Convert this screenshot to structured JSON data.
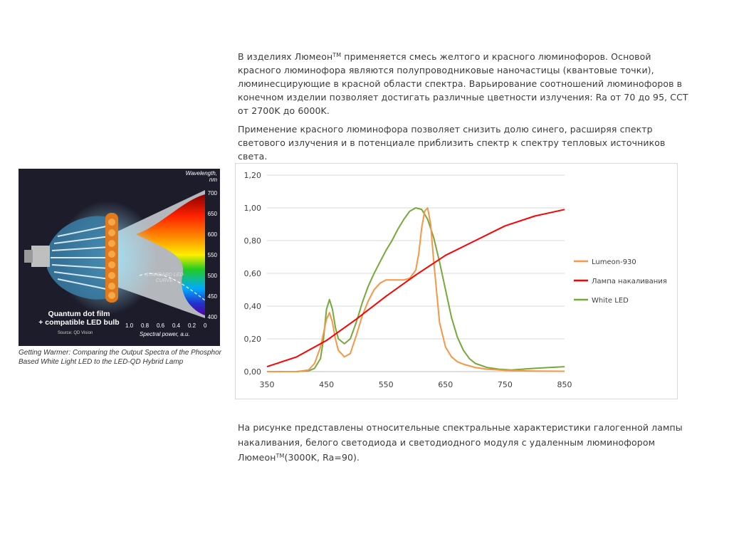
{
  "text": {
    "p1_part1": "В изделиях Люмеон",
    "tm": "TM",
    "p1_part2": " применяется смесь желтого и красного люминофоров. Основой красного люминофора являются полупроводниковые наночастицы (квантовые точки), люминесцирующие в красной области спектра. Варьирование соотношений люминофоров в конечном изделии позволяет достигать различные цветности излучения: Ra от 70 до 95, CCT от 2700K до 6000K.",
    "p2": "Применение красного люминофора позволяет снизить долю синего, расширяя спектр светового излучения и в потенциале приблизить спектр к спектру тепловых источников света.",
    "p3_part1": "На рисунке представлены относительные спектральные характеристики галогенной лампы накаливания, белого светодиода и светодиодного модуля с удаленным люминофором Люмеон",
    "p3_part2": "(3000K, Ra=90)."
  },
  "photo": {
    "wavelength_label": "Wavelength,",
    "wavelength_unit": "nm",
    "wl_ticks": [
      "700",
      "650",
      "600",
      "550",
      "500",
      "450",
      "400"
    ],
    "power_ticks": [
      "1.0",
      "0.8",
      "0.6",
      "0.4",
      "0.2",
      "0"
    ],
    "power_label": "Spectral power, a.u.",
    "curve_label_1": "STANDARD LED",
    "curve_label_2": "CURVE",
    "bulb_line1": "Quantum dot film",
    "bulb_line2": "+ compatible LED bulb",
    "source": "Source: QD Vision",
    "caption": "Getting Warmer: Comparing the Output Spectra of the Phosphor Based White Light LED to the LED-QD Hybrid Lamp"
  },
  "chart_data": {
    "type": "line",
    "xlim": [
      350,
      850
    ],
    "ylim": [
      0,
      1.2
    ],
    "x_ticks": [
      "350",
      "450",
      "550",
      "650",
      "750",
      "850"
    ],
    "y_ticks": [
      "0,00",
      "0,20",
      "0,40",
      "0,60",
      "0,80",
      "1,00",
      "1,20"
    ],
    "grid": true,
    "legend_position": "right",
    "series": [
      {
        "name": "Lumeon-930",
        "color": "#f79646",
        "x": [
          350,
          400,
          420,
          430,
          440,
          450,
          455,
          460,
          465,
          470,
          480,
          490,
          500,
          510,
          520,
          530,
          540,
          550,
          560,
          570,
          580,
          590,
          600,
          605,
          610,
          615,
          620,
          625,
          630,
          640,
          650,
          660,
          670,
          680,
          690,
          700,
          720,
          750,
          800,
          850
        ],
        "y": [
          0,
          0,
          0.01,
          0.05,
          0.15,
          0.32,
          0.36,
          0.3,
          0.2,
          0.13,
          0.09,
          0.11,
          0.22,
          0.34,
          0.43,
          0.5,
          0.54,
          0.56,
          0.56,
          0.56,
          0.56,
          0.57,
          0.62,
          0.72,
          0.88,
          0.98,
          1.0,
          0.9,
          0.68,
          0.3,
          0.15,
          0.09,
          0.06,
          0.045,
          0.035,
          0.025,
          0.015,
          0.008,
          0.003,
          0.002
        ]
      },
      {
        "name": "Лампа накаливания",
        "color": "#ff0000",
        "x": [
          350,
          400,
          450,
          500,
          550,
          600,
          650,
          700,
          750,
          800,
          850
        ],
        "y": [
          0.03,
          0.09,
          0.19,
          0.32,
          0.46,
          0.59,
          0.71,
          0.8,
          0.89,
          0.95,
          0.99
        ]
      },
      {
        "name": "White LED",
        "color": "#77a83a",
        "x": [
          350,
          400,
          420,
          430,
          440,
          445,
          450,
          455,
          460,
          465,
          470,
          480,
          490,
          500,
          510,
          520,
          530,
          540,
          550,
          560,
          570,
          580,
          590,
          600,
          610,
          620,
          630,
          640,
          650,
          660,
          670,
          680,
          690,
          700,
          720,
          740,
          760,
          800,
          850
        ],
        "y": [
          0,
          0,
          0.005,
          0.02,
          0.08,
          0.2,
          0.38,
          0.44,
          0.38,
          0.27,
          0.2,
          0.17,
          0.2,
          0.3,
          0.42,
          0.52,
          0.6,
          0.67,
          0.74,
          0.8,
          0.87,
          0.93,
          0.98,
          1.0,
          0.99,
          0.93,
          0.82,
          0.67,
          0.5,
          0.33,
          0.21,
          0.13,
          0.08,
          0.05,
          0.025,
          0.015,
          0.01,
          0.02,
          0.03
        ]
      }
    ]
  }
}
